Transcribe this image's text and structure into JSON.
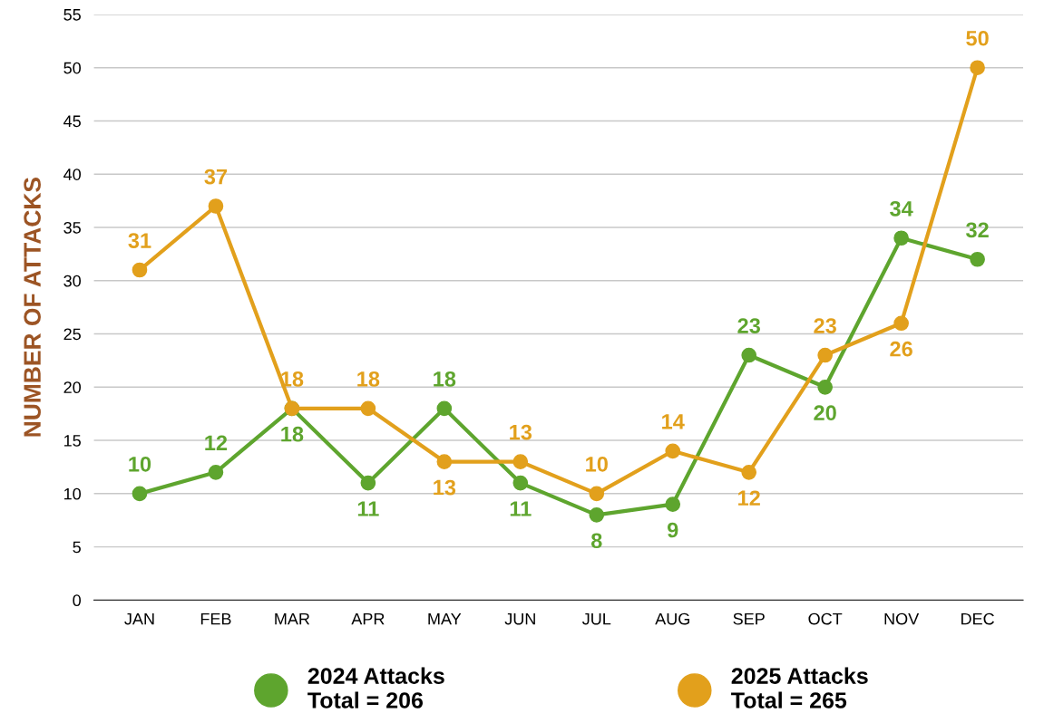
{
  "chart_data": {
    "type": "line",
    "ylabel": "NUMBER OF ATTACKS",
    "categories": [
      "JAN",
      "FEB",
      "MAR",
      "APR",
      "MAY",
      "JUN",
      "JUL",
      "AUG",
      "SEP",
      "OCT",
      "NOV",
      "DEC"
    ],
    "series": [
      {
        "name": "2024 Attacks\nTotal = 206",
        "color": "#5ea52e",
        "values": [
          10,
          12,
          18,
          11,
          18,
          11,
          8,
          9,
          23,
          20,
          34,
          32
        ]
      },
      {
        "name": "2025 Attacks\nTotal = 265",
        "color": "#e2a01c",
        "values": [
          31,
          37,
          18,
          18,
          13,
          13,
          10,
          14,
          12,
          23,
          26,
          50
        ]
      }
    ],
    "ylim": [
      0,
      55
    ],
    "yticks": [
      0,
      5,
      10,
      15,
      20,
      25,
      30,
      35,
      40,
      45,
      50,
      55
    ],
    "grid": "y",
    "legend": "bottom",
    "marker": "circle",
    "line_style": "solid",
    "data_labels": true
  }
}
